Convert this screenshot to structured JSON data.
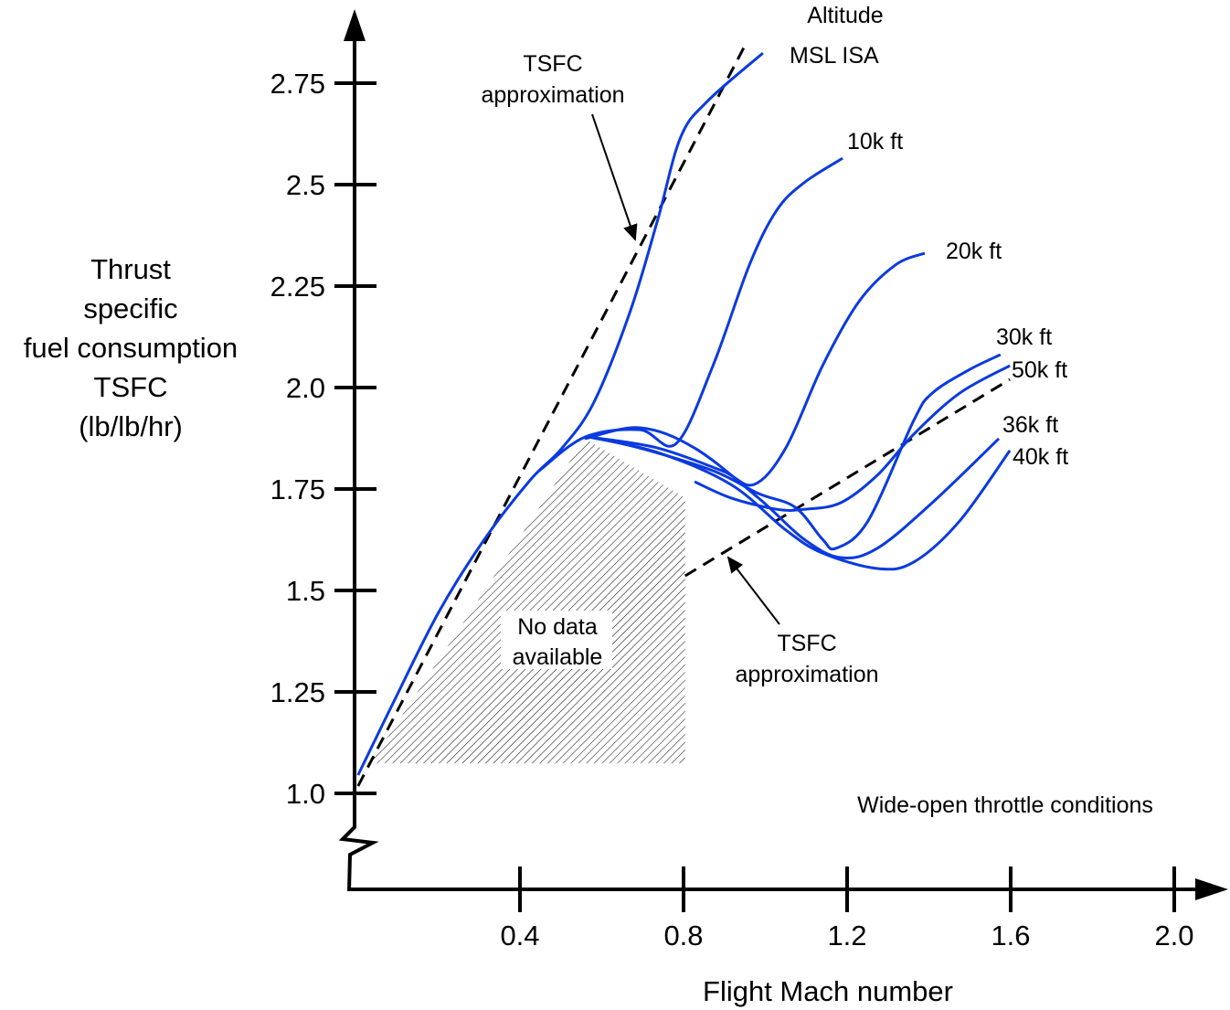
{
  "chart_data": {
    "type": "line",
    "xlabel": "Flight Mach number",
    "ylabel": [
      "Thrust",
      "specific",
      "fuel consumption",
      "TSFC",
      "(lb/lb/hr)"
    ],
    "xlim": [
      0,
      2.1
    ],
    "ylim": [
      0.95,
      2.85
    ],
    "xticks": [
      {
        "v": 0.4,
        "label": "0.4"
      },
      {
        "v": 0.8,
        "label": "0.8"
      },
      {
        "v": 1.2,
        "label": "1.2"
      },
      {
        "v": 1.6,
        "label": "1.6"
      },
      {
        "v": 2.0,
        "label": "2.0"
      }
    ],
    "yticks": [
      {
        "v": 1.0,
        "label": "1.0"
      },
      {
        "v": 1.25,
        "label": "1.25"
      },
      {
        "v": 1.5,
        "label": "1.5"
      },
      {
        "v": 1.75,
        "label": "1.75"
      },
      {
        "v": 2.0,
        "label": "2.0"
      },
      {
        "v": 2.25,
        "label": "2.25"
      },
      {
        "v": 2.5,
        "label": "2.5"
      },
      {
        "v": 2.75,
        "label": "2.75"
      }
    ],
    "line_color": "#0a3ae0",
    "legend_title": [
      "Altitude"
    ],
    "series": [
      {
        "name": "MSL ISA",
        "x": [
          0.004,
          0.089,
          0.201,
          0.313,
          0.425,
          0.503,
          0.581,
          0.67,
          0.737,
          0.793,
          0.86,
          0.994
        ],
        "y": [
          1.045,
          1.221,
          1.446,
          1.626,
          1.772,
          1.851,
          1.964,
          2.189,
          2.414,
          2.617,
          2.707,
          2.824
        ]
      },
      {
        "name": "10k ft",
        "x": [
          0.447,
          0.559,
          0.693,
          0.782,
          0.872,
          0.961,
          1.028,
          1.095,
          1.189
        ],
        "y": [
          1.795,
          1.878,
          1.896,
          1.862,
          2.054,
          2.302,
          2.437,
          2.505,
          2.565
        ]
      },
      {
        "name": "20k ft",
        "x": [
          0.57,
          0.737,
          0.894,
          0.972,
          1.05,
          1.14,
          1.229,
          1.318,
          1.39
        ],
        "y": [
          1.878,
          1.851,
          1.795,
          1.761,
          1.851,
          2.054,
          2.212,
          2.302,
          2.331
        ]
      },
      {
        "name": "30k ft",
        "x": [
          0.57,
          0.693,
          0.872,
          0.983,
          1.073,
          1.14,
          1.173,
          1.251,
          1.363,
          1.408,
          1.497,
          1.575
        ],
        "y": [
          1.878,
          1.851,
          1.795,
          1.739,
          1.705,
          1.626,
          1.604,
          1.671,
          1.919,
          1.986,
          2.043,
          2.081
        ]
      },
      {
        "name": "50k ft",
        "x": [
          0.827,
          0.916,
          1.028,
          1.095,
          1.184,
          1.274,
          1.363,
          1.475,
          1.598
        ],
        "y": [
          1.768,
          1.728,
          1.7,
          1.7,
          1.716,
          1.784,
          1.885,
          1.986,
          2.054
        ]
      },
      {
        "name": "36k ft",
        "x": [
          0.559,
          0.693,
          0.827,
          0.983,
          1.095,
          1.184,
          1.274,
          1.408,
          1.571
        ],
        "y": [
          1.874,
          1.901,
          1.851,
          1.728,
          1.626,
          1.581,
          1.604,
          1.716,
          1.874
        ]
      },
      {
        "name": "40k ft",
        "x": [
          0.57,
          0.737,
          0.916,
          1.05,
          1.14,
          1.274,
          1.363,
          1.475,
          1.598
        ],
        "y": [
          1.878,
          1.84,
          1.761,
          1.649,
          1.592,
          1.554,
          1.57,
          1.671,
          1.845
        ]
      }
    ],
    "approximations": [
      {
        "label": [
          "TSFC",
          "approximation"
        ],
        "x": [
          0.004,
          0.956
        ],
        "y": [
          1.018,
          2.854
        ]
      },
      {
        "label": [
          "TSFC",
          "approximation"
        ],
        "x": [
          0.804,
          1.598
        ],
        "y": [
          1.536,
          2.02
        ]
      }
    ],
    "no_data_region": {
      "label": [
        "No data",
        "available"
      ],
      "x": [
        0.034,
        0.559,
        0.804,
        0.804
      ],
      "y": [
        1.074,
        1.874,
        1.728,
        1.074
      ]
    },
    "annotations": {
      "conditions": "Wide-open throttle conditions"
    }
  }
}
